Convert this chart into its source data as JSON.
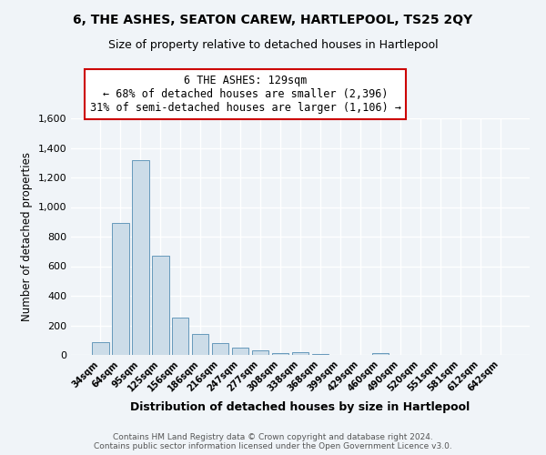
{
  "title": "6, THE ASHES, SEATON CAREW, HARTLEPOOL, TS25 2QY",
  "subtitle": "Size of property relative to detached houses in Hartlepool",
  "xlabel": "Distribution of detached houses by size in Hartlepool",
  "ylabel": "Number of detached properties",
  "bar_labels": [
    "34sqm",
    "64sqm",
    "95sqm",
    "125sqm",
    "156sqm",
    "186sqm",
    "216sqm",
    "247sqm",
    "277sqm",
    "308sqm",
    "338sqm",
    "368sqm",
    "399sqm",
    "429sqm",
    "460sqm",
    "490sqm",
    "520sqm",
    "551sqm",
    "581sqm",
    "612sqm",
    "642sqm"
  ],
  "bar_values": [
    88,
    890,
    1320,
    670,
    250,
    140,
    78,
    52,
    28,
    10,
    18,
    4,
    0,
    0,
    14,
    0,
    0,
    0,
    0,
    0,
    0
  ],
  "bar_color": "#ccdce8",
  "bar_edge_color": "#6699bb",
  "annotation_title": "6 THE ASHES: 129sqm",
  "annotation_line1": "← 68% of detached houses are smaller (2,396)",
  "annotation_line2": "31% of semi-detached houses are larger (1,106) →",
  "annotation_box_color": "#ffffff",
  "annotation_box_edge_color": "#cc0000",
  "ylim": [
    0,
    1600
  ],
  "yticks": [
    0,
    200,
    400,
    600,
    800,
    1000,
    1200,
    1400,
    1600
  ],
  "footer_line1": "Contains HM Land Registry data © Crown copyright and database right 2024.",
  "footer_line2": "Contains public sector information licensed under the Open Government Licence v3.0.",
  "background_color": "#f0f4f8",
  "grid_color": "#ffffff",
  "title_fontsize": 10,
  "subtitle_fontsize": 9
}
